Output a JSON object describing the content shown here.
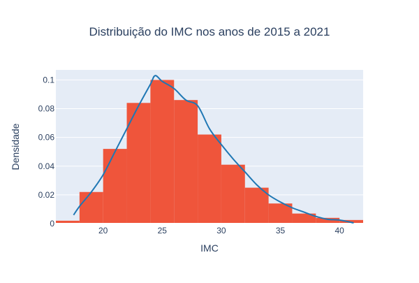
{
  "chart_data": {
    "type": "bar",
    "title": "Distribuição do IMC nos anos de 2015 a 2021",
    "xlabel": "IMC",
    "ylabel": "Densidade",
    "xlim": [
      16,
      42
    ],
    "ylim": [
      0,
      0.107
    ],
    "x_ticks": [
      20,
      25,
      30,
      35,
      40
    ],
    "x_tick_labels": [
      "20",
      "25",
      "30",
      "35",
      "40"
    ],
    "y_ticks": [
      0,
      0.02,
      0.04,
      0.06,
      0.08,
      0.1
    ],
    "y_tick_labels": [
      "0",
      "0.02",
      "0.04",
      "0.06",
      "0.08",
      "0.1"
    ],
    "grid": true,
    "legend": "none",
    "histogram": {
      "bin_edges": [
        16,
        18,
        20,
        22,
        24,
        26,
        28,
        30,
        32,
        34,
        36,
        38,
        40,
        42
      ],
      "density": [
        0.002,
        0.022,
        0.052,
        0.084,
        0.1,
        0.086,
        0.062,
        0.041,
        0.025,
        0.014,
        0.007,
        0.004,
        0.0025
      ],
      "color": "#ef553b"
    },
    "kde": {
      "color": "#1f77b4",
      "x": [
        17.5,
        18,
        19,
        20,
        21,
        22,
        23,
        24,
        24.4,
        25,
        26,
        27,
        28,
        29,
        30,
        31,
        32,
        33,
        34,
        35,
        36,
        37,
        38,
        39,
        40,
        41.2
      ],
      "y": [
        0.006,
        0.012,
        0.022,
        0.034,
        0.05,
        0.066,
        0.082,
        0.097,
        0.103,
        0.099,
        0.094,
        0.086,
        0.082,
        0.066,
        0.055,
        0.045,
        0.036,
        0.027,
        0.02,
        0.015,
        0.011,
        0.008,
        0.005,
        0.003,
        0.0025,
        0.0005
      ]
    }
  }
}
